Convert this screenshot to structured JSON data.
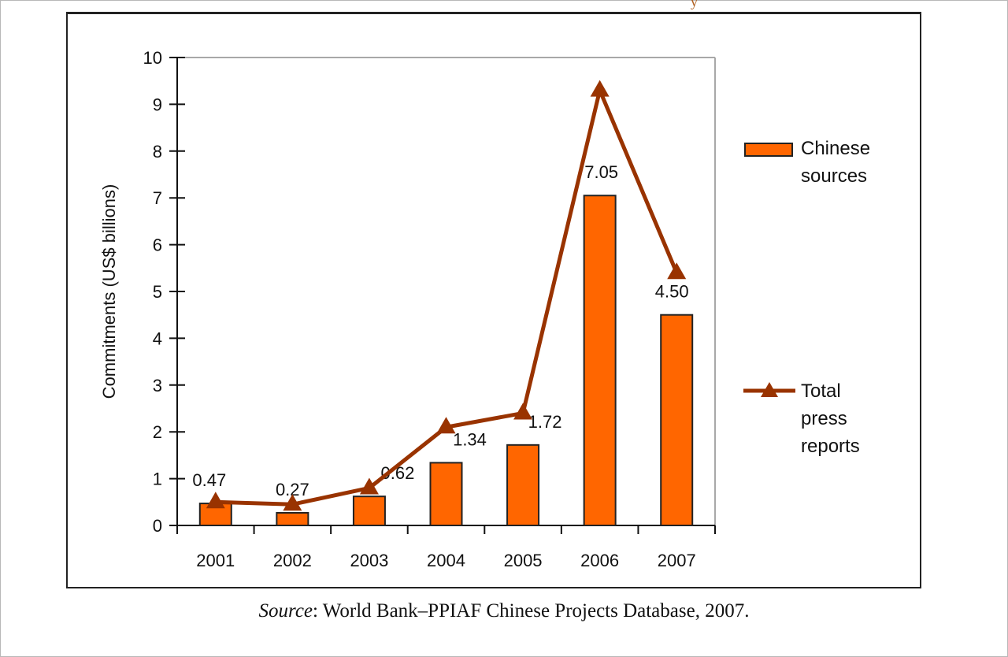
{
  "chart_data": {
    "type": "bar",
    "title": "",
    "xlabel": "",
    "ylabel": "Commitments (US$ billions)",
    "ylim": [
      0,
      10
    ],
    "yticks": [
      0,
      1,
      2,
      3,
      4,
      5,
      6,
      7,
      8,
      9,
      10
    ],
    "categories": [
      "2001",
      "2002",
      "2003",
      "2004",
      "2005",
      "2006",
      "2007"
    ],
    "series": [
      {
        "name": "Chinese sources",
        "type": "bar",
        "color": "#ff6600",
        "values": [
          0.47,
          0.27,
          0.62,
          1.34,
          1.72,
          7.05,
          4.5
        ],
        "labels": [
          "0.47",
          "0.27",
          "0.62",
          "1.34",
          "1.72",
          "7.05",
          "4.50"
        ]
      },
      {
        "name": "Total press reports",
        "type": "line",
        "marker": "triangle",
        "color": "#993300",
        "values": [
          0.5,
          0.45,
          0.8,
          2.1,
          2.4,
          9.3,
          5.4
        ]
      }
    ],
    "legend": {
      "placement": "right",
      "entries": [
        {
          "label_lines": [
            "Chinese",
            "sources"
          ],
          "kind": "bar"
        },
        {
          "label_lines": [
            "Total",
            "press",
            "reports"
          ],
          "kind": "line"
        }
      ]
    },
    "grid": false
  },
  "source": {
    "prefix": "Source",
    "text": ": World Bank–PPIAF Chinese Projects Database, 2007."
  },
  "top_fragment": "y"
}
